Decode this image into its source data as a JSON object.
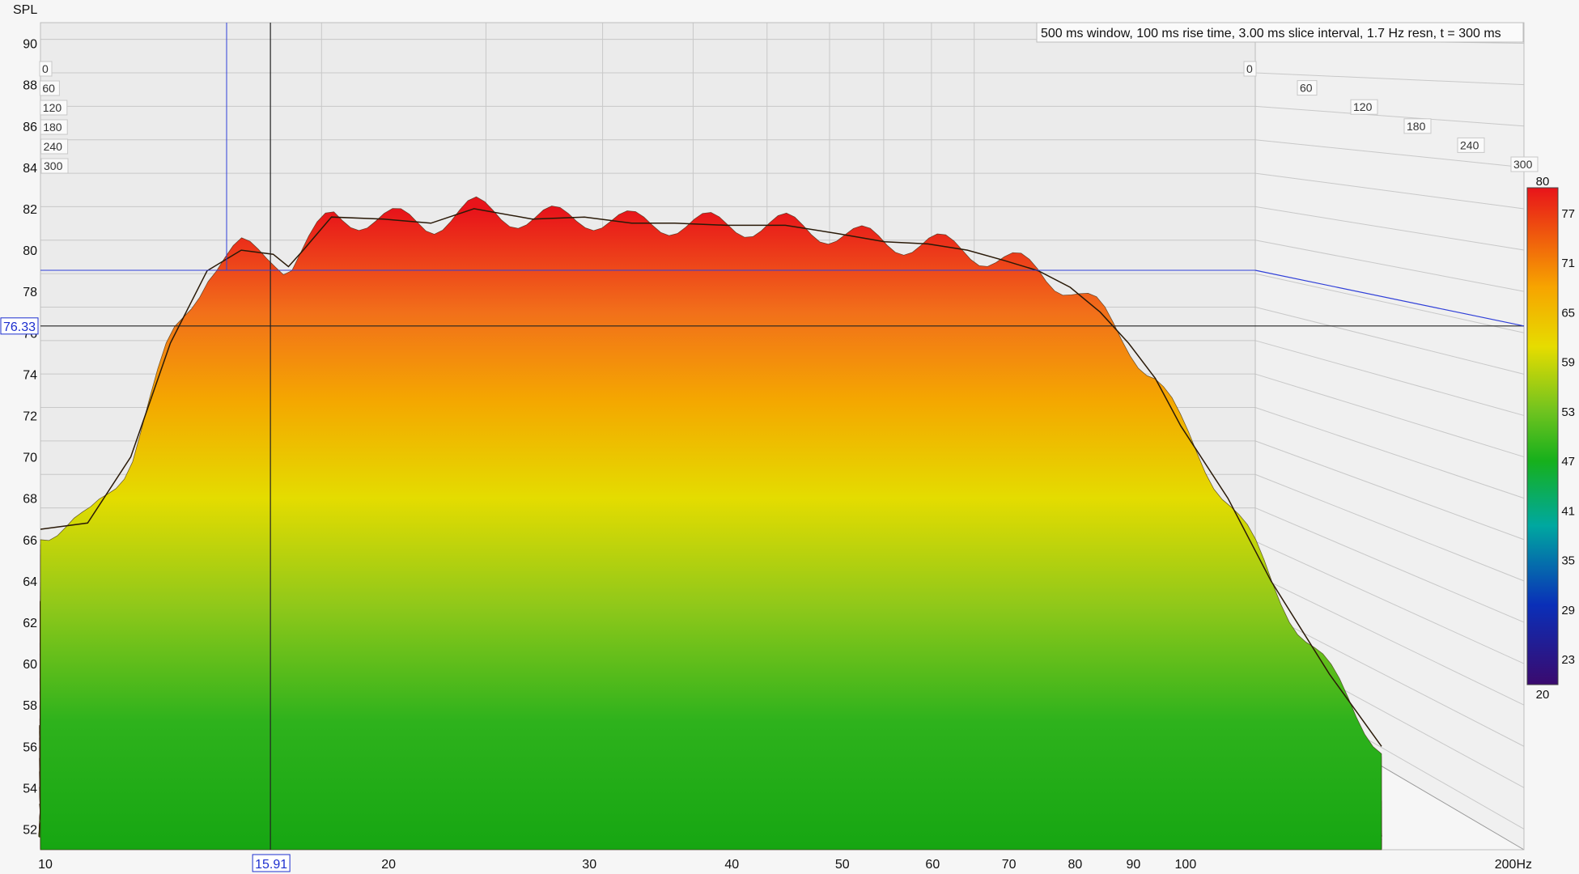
{
  "chart_data": {
    "type": "waterfall",
    "y_axis_label": "SPL",
    "x_axis_unit": "Hz",
    "x_range": [
      10,
      200
    ],
    "y_range": [
      51,
      91
    ],
    "x_scale": "log",
    "x_ticks": [
      {
        "value": 10,
        "label": "10"
      },
      {
        "value": 20,
        "label": "20"
      },
      {
        "value": 30,
        "label": "30"
      },
      {
        "value": 40,
        "label": "40"
      },
      {
        "value": 50,
        "label": "50"
      },
      {
        "value": 60,
        "label": "60"
      },
      {
        "value": 70,
        "label": "70"
      },
      {
        "value": 80,
        "label": "80"
      },
      {
        "value": 90,
        "label": "90"
      },
      {
        "value": 100,
        "label": "100"
      },
      {
        "value": 200,
        "label": "200Hz"
      }
    ],
    "y_ticks": [
      52,
      54,
      56,
      58,
      60,
      62,
      64,
      66,
      68,
      70,
      72,
      74,
      76,
      78,
      80,
      82,
      84,
      86,
      88,
      90
    ],
    "time_slices_ms": [
      "0",
      "60",
      "120",
      "180",
      "240",
      "300"
    ],
    "info_text": "500 ms window, 100 ms rise time, 3.00 ms slice interval, 1.7 Hz resn, t = 300 ms",
    "cursor": {
      "frequency_label": "15.91",
      "spl_label": "76.33",
      "frequency": 15.91,
      "spl": 76.33
    },
    "color_scale": {
      "min_label": "20",
      "max_label": "80",
      "ticks": [
        "77",
        "71",
        "65",
        "59",
        "53",
        "47",
        "41",
        "35",
        "29",
        "23"
      ],
      "colors": [
        "#e8141a",
        "#f7a400",
        "#e6dc00",
        "#2cb61e",
        "#00a8a0",
        "#0a2fb8",
        "#3a0a6e"
      ]
    },
    "front_slice": {
      "time_ms": 0,
      "points": [
        [
          10,
          66.5
        ],
        [
          11,
          66.8
        ],
        [
          12,
          70.0
        ],
        [
          13,
          75.5
        ],
        [
          14,
          79.0
        ],
        [
          15,
          80.0
        ],
        [
          16,
          79.8
        ],
        [
          16.5,
          79.2
        ],
        [
          17,
          80.0
        ],
        [
          18,
          81.6
        ],
        [
          20,
          81.5
        ],
        [
          22,
          81.3
        ],
        [
          24,
          82.0
        ],
        [
          27,
          81.5
        ],
        [
          30,
          81.6
        ],
        [
          33,
          81.3
        ],
        [
          36,
          81.3
        ],
        [
          40,
          81.2
        ],
        [
          45,
          81.2
        ],
        [
          50,
          80.8
        ],
        [
          55,
          80.4
        ],
        [
          60,
          80.3
        ],
        [
          65,
          80.0
        ],
        [
          70,
          79.5
        ],
        [
          75,
          79.0
        ],
        [
          80,
          78.2
        ],
        [
          85,
          77.0
        ],
        [
          90,
          75.5
        ],
        [
          95,
          73.8
        ],
        [
          100,
          71.5
        ],
        [
          110,
          68.0
        ],
        [
          120,
          64.0
        ],
        [
          135,
          59.5
        ],
        [
          150,
          56.0
        ]
      ]
    }
  }
}
